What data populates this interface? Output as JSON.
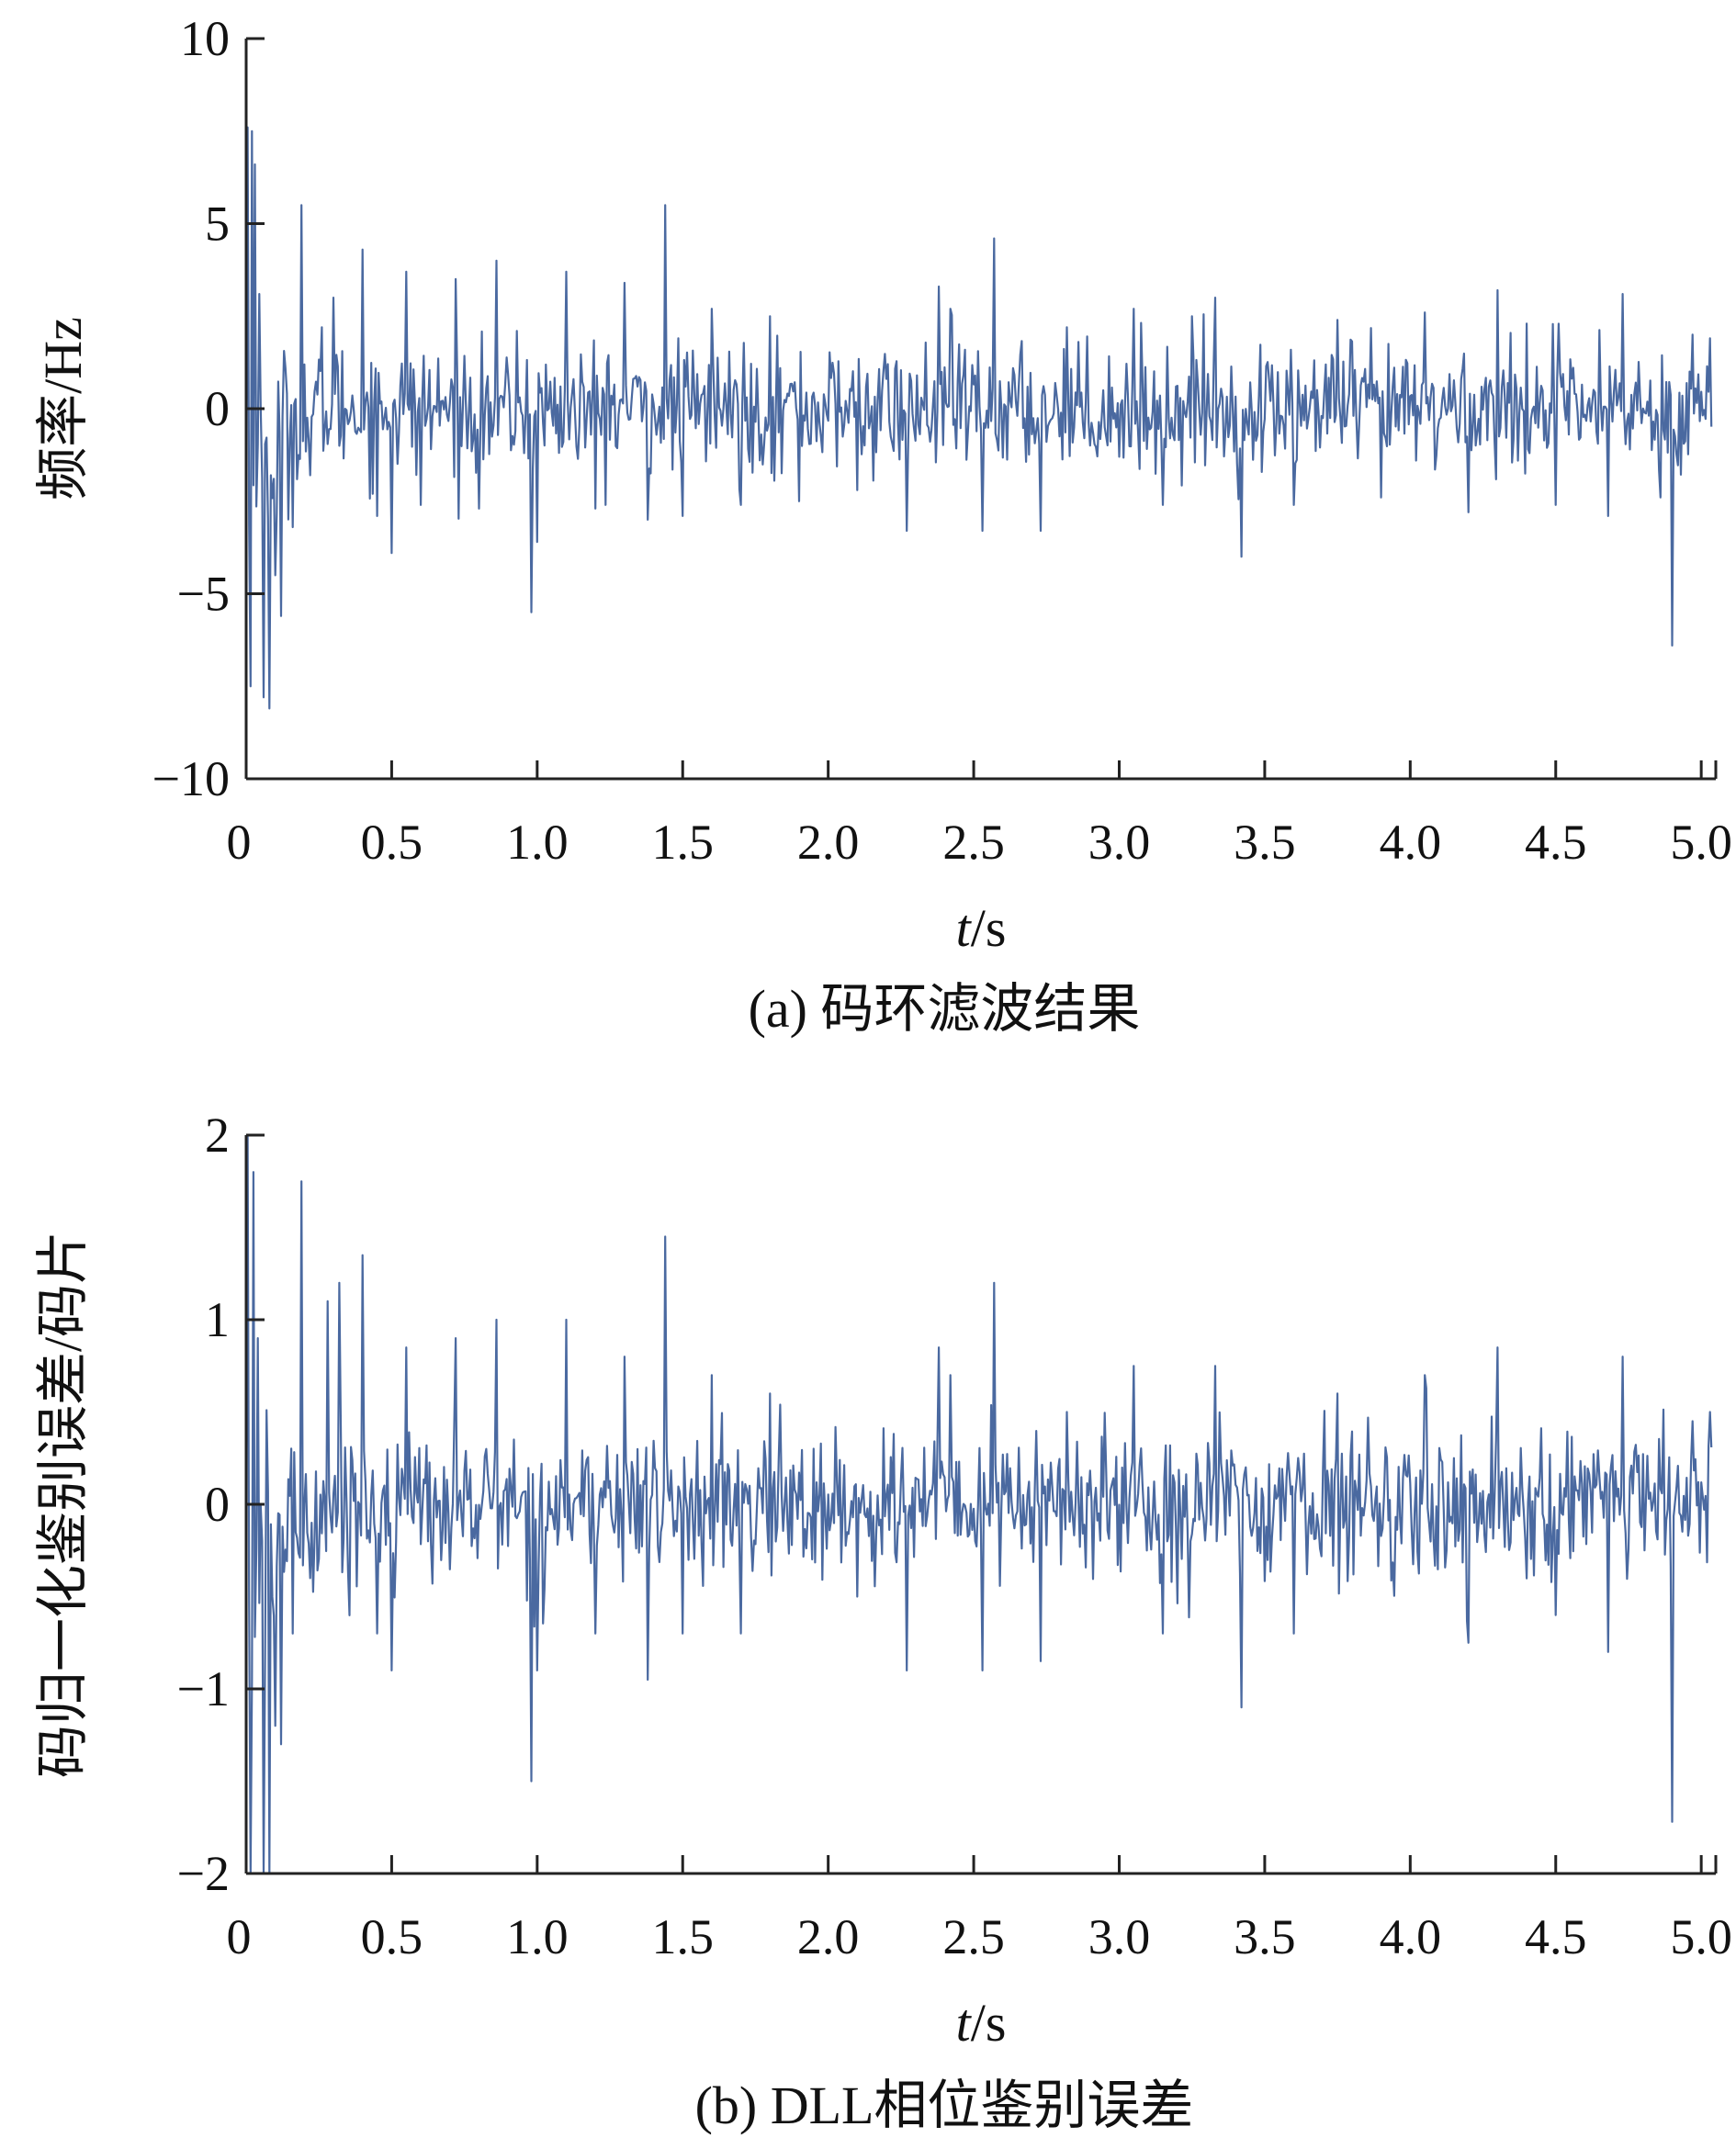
{
  "colors": {
    "series": "#4a69a0",
    "axis": "#222222"
  },
  "charts": [
    {
      "id": "a",
      "caption": "(a) 码环滤波结果",
      "chart_data": {
        "type": "line",
        "title": "",
        "xlabel_italic": "t",
        "xlabel_unit": "/s",
        "ylabel": "频率/Hz",
        "xlim": [
          0,
          5.05
        ],
        "ylim": [
          -10,
          10
        ],
        "x_ticks": [
          0,
          0.5,
          1.0,
          1.5,
          2.0,
          2.5,
          3.0,
          3.5,
          4.0,
          4.5,
          5.0
        ],
        "x_tick_labels": [
          "0",
          "0.5",
          "1.0",
          "1.5",
          "2.0",
          "2.5",
          "3.0",
          "3.5",
          "4.0",
          "4.5",
          "5.0"
        ],
        "y_ticks": [
          10,
          5,
          0,
          -5,
          -10
        ],
        "y_tick_labels": [
          "10",
          "5",
          "0",
          "−5",
          "−10"
        ],
        "grid": false,
        "legend": "none",
        "sample_dt": 0.005,
        "noise_std": 0.85,
        "peaks": [
          [
            0.005,
            7.6
          ],
          [
            0.015,
            -7.5
          ],
          [
            0.02,
            7.5
          ],
          [
            0.03,
            6.6
          ],
          [
            0.045,
            3.1
          ],
          [
            0.06,
            -7.8
          ],
          [
            0.08,
            -8.1
          ],
          [
            0.1,
            -4.5
          ],
          [
            0.12,
            -5.6
          ],
          [
            0.16,
            -3.2
          ],
          [
            0.19,
            5.5
          ],
          [
            0.22,
            -1.8
          ],
          [
            0.26,
            2.2
          ],
          [
            0.3,
            3.0
          ],
          [
            0.4,
            4.3
          ],
          [
            0.45,
            -2.9
          ],
          [
            0.5,
            -3.9
          ],
          [
            0.55,
            3.7
          ],
          [
            0.6,
            -2.6
          ],
          [
            0.72,
            3.5
          ],
          [
            0.8,
            -2.7
          ],
          [
            0.86,
            4.0
          ],
          [
            0.93,
            2.1
          ],
          [
            0.98,
            -5.5
          ],
          [
            1.0,
            -3.6
          ],
          [
            1.1,
            3.7
          ],
          [
            1.2,
            -2.7
          ],
          [
            1.3,
            3.4
          ],
          [
            1.38,
            -3.0
          ],
          [
            1.44,
            5.5
          ],
          [
            1.5,
            -2.9
          ],
          [
            1.6,
            2.7
          ],
          [
            1.7,
            -2.6
          ],
          [
            1.8,
            2.5
          ],
          [
            1.9,
            -2.5
          ],
          [
            2.1,
            -2.2
          ],
          [
            2.27,
            -3.3
          ],
          [
            2.38,
            3.3
          ],
          [
            2.42,
            2.7
          ],
          [
            2.53,
            -3.3
          ],
          [
            2.57,
            4.6
          ],
          [
            2.73,
            -3.3
          ],
          [
            2.82,
            2.2
          ],
          [
            3.05,
            2.7
          ],
          [
            3.15,
            -2.6
          ],
          [
            3.25,
            2.5
          ],
          [
            3.33,
            3.0
          ],
          [
            3.42,
            -4.0
          ],
          [
            3.6,
            -2.6
          ],
          [
            3.75,
            2.4
          ],
          [
            3.9,
            -2.4
          ],
          [
            4.05,
            2.6
          ],
          [
            4.2,
            -2.8
          ],
          [
            4.3,
            3.2
          ],
          [
            4.4,
            2.3
          ],
          [
            4.5,
            -2.6
          ],
          [
            4.68,
            -2.9
          ],
          [
            4.73,
            3.1
          ],
          [
            4.86,
            -2.4
          ],
          [
            4.9,
            -6.4
          ],
          [
            4.97,
            2.0
          ],
          [
            5.03,
            1.9
          ]
        ]
      }
    },
    {
      "id": "b",
      "caption": "(b) DLL相位鉴别误差",
      "chart_data": {
        "type": "line",
        "title": "",
        "xlabel_italic": "t",
        "xlabel_unit": "/s",
        "ylabel": "码归一化鉴别误差/码片",
        "xlim": [
          0,
          5.05
        ],
        "ylim": [
          -2,
          2
        ],
        "x_ticks": [
          0,
          0.5,
          1.0,
          1.5,
          2.0,
          2.5,
          3.0,
          3.5,
          4.0,
          4.5,
          5.0
        ],
        "x_tick_labels": [
          "0",
          "0.5",
          "1.0",
          "1.5",
          "2.0",
          "2.5",
          "3.0",
          "3.5",
          "4.0",
          "4.5",
          "5.0"
        ],
        "y_ticks": [
          2,
          1,
          0,
          -1,
          -2
        ],
        "y_tick_labels": [
          "2",
          "1",
          "0",
          "−1",
          "−2"
        ],
        "grid": false,
        "legend": "none",
        "sample_dt": 0.005,
        "noise_std": 0.2,
        "peaks": [
          [
            0.005,
            2.0
          ],
          [
            0.015,
            -2.0
          ],
          [
            0.025,
            1.8
          ],
          [
            0.04,
            0.9
          ],
          [
            0.06,
            -2.0
          ],
          [
            0.08,
            -2.0
          ],
          [
            0.1,
            -1.2
          ],
          [
            0.12,
            -1.3
          ],
          [
            0.16,
            -0.7
          ],
          [
            0.19,
            1.75
          ],
          [
            0.22,
            -0.4
          ],
          [
            0.28,
            1.1
          ],
          [
            0.32,
            1.2
          ],
          [
            0.4,
            1.35
          ],
          [
            0.45,
            -0.7
          ],
          [
            0.5,
            -0.9
          ],
          [
            0.55,
            0.85
          ],
          [
            0.72,
            0.9
          ],
          [
            0.86,
            1.0
          ],
          [
            0.98,
            -1.5
          ],
          [
            1.0,
            -0.9
          ],
          [
            1.1,
            1.0
          ],
          [
            1.2,
            -0.7
          ],
          [
            1.3,
            0.8
          ],
          [
            1.38,
            -0.95
          ],
          [
            1.44,
            1.45
          ],
          [
            1.5,
            -0.7
          ],
          [
            1.6,
            0.7
          ],
          [
            1.7,
            -0.7
          ],
          [
            1.8,
            0.6
          ],
          [
            2.1,
            -0.5
          ],
          [
            2.27,
            -0.9
          ],
          [
            2.38,
            0.85
          ],
          [
            2.42,
            0.7
          ],
          [
            2.53,
            -0.9
          ],
          [
            2.57,
            1.2
          ],
          [
            2.73,
            -0.85
          ],
          [
            2.82,
            0.5
          ],
          [
            3.05,
            0.75
          ],
          [
            3.15,
            -0.7
          ],
          [
            3.33,
            0.75
          ],
          [
            3.42,
            -1.1
          ],
          [
            3.6,
            -0.7
          ],
          [
            3.75,
            0.6
          ],
          [
            4.05,
            0.7
          ],
          [
            4.2,
            -0.75
          ],
          [
            4.3,
            0.85
          ],
          [
            4.5,
            -0.6
          ],
          [
            4.68,
            -0.8
          ],
          [
            4.73,
            0.8
          ],
          [
            4.9,
            -1.72
          ],
          [
            4.97,
            0.45
          ],
          [
            5.03,
            0.5
          ]
        ]
      }
    }
  ]
}
